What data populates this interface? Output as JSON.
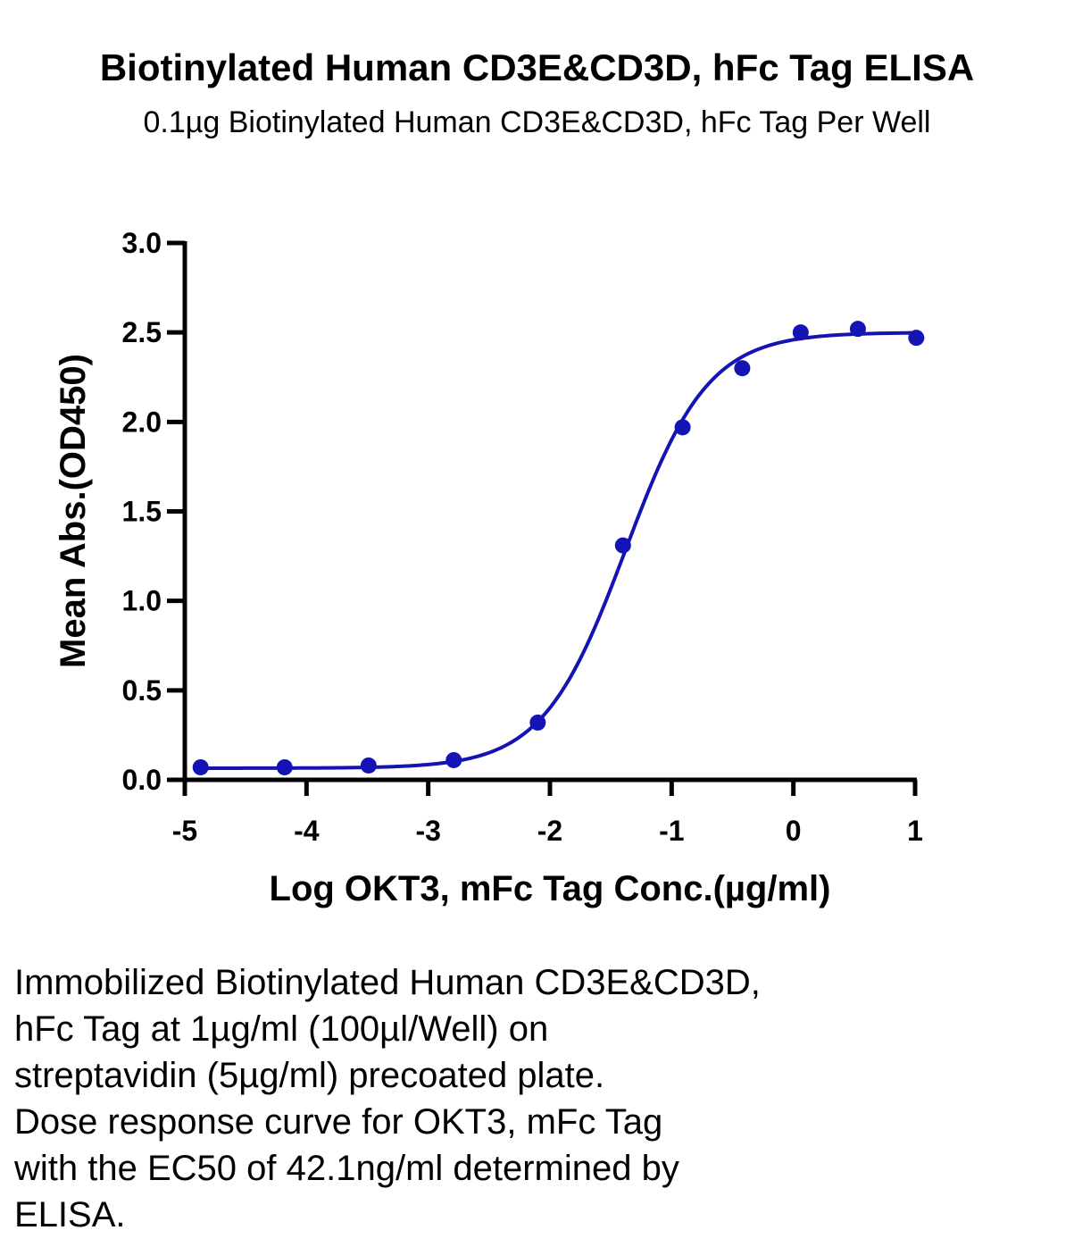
{
  "title": "Biotinylated Human CD3E&CD3D, hFc Tag ELISA",
  "subtitle": "0.1µg Biotinylated Human CD3E&CD3D, hFc Tag Per Well",
  "caption": "Immobilized Biotinylated Human CD3E&CD3D,\nhFc Tag at 1µg/ml (100µl/Well) on\nstreptavidin (5µg/ml) precoated plate.\nDose response curve for OKT3, mFc Tag\nwith the EC50 of 42.1ng/ml determined by\nELISA.",
  "colors": {
    "series": "#1414b4",
    "axis": "#000000"
  },
  "chart_data": {
    "type": "scatter",
    "xlabel": "Log OKT3, mFc Tag Conc.(µg/ml)",
    "ylabel": "Mean Abs.(OD450)",
    "xlim": [
      -5,
      1
    ],
    "ylim": [
      0,
      3
    ],
    "x_ticks": [
      -5,
      -4,
      -3,
      -2,
      -1,
      0,
      1
    ],
    "x_tick_labels": [
      "-5",
      "-4",
      "-3",
      "-2",
      "-1",
      "0",
      "1"
    ],
    "y_ticks": [
      0,
      0.5,
      1,
      1.5,
      2,
      2.5,
      3
    ],
    "y_tick_labels": [
      "0.0",
      "0.5",
      "1.0",
      "1.5",
      "2.0",
      "2.5",
      "3.0"
    ],
    "grid": false,
    "series": [
      {
        "x": [
          -4.87,
          -4.18,
          -3.49,
          -2.79,
          -2.1,
          -1.4,
          -0.91,
          -0.42,
          0.06,
          0.53,
          1.01
        ],
        "y": [
          0.07,
          0.07,
          0.08,
          0.11,
          0.32,
          1.31,
          1.97,
          2.3,
          2.5,
          2.52,
          2.47
        ],
        "fit": {
          "model": "4PL",
          "bottom": 0.065,
          "top": 2.5,
          "logEC50": -1.38,
          "hill": 1.28
        }
      }
    ]
  }
}
